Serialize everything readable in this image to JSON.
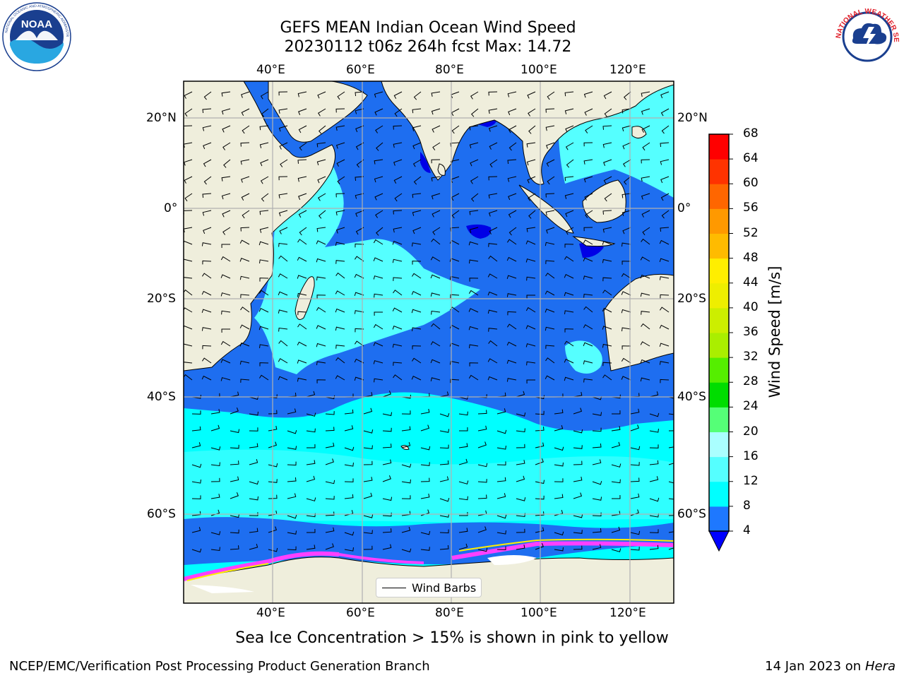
{
  "header": {
    "title_line1": "GEFS MEAN Indian Ocean Wind Speed",
    "title_line2": "20230112 t06z 264h fcst   Max: 14.72"
  },
  "logos": {
    "noaa": {
      "text": "NOAA",
      "ring_text": "NATIONAL OCEANIC AND ATMOSPHERIC ADMINISTRATION · U.S. DEPARTMENT OF COMMERCE"
    },
    "nws": {
      "ring_text": "NATIONAL WEATHER SERVICE"
    }
  },
  "map": {
    "lon_ticks": [
      "40°E",
      "60°E",
      "80°E",
      "100°E",
      "120°E"
    ],
    "lat_ticks": [
      "20°N",
      "0°",
      "20°S",
      "40°S",
      "60°S"
    ],
    "legend_label": "Wind Barbs",
    "colors": {
      "land": "#efeedc",
      "ocean_4_8": "#1e6ef0",
      "ocean_0_4": "#0000e6",
      "ocean_8_12": "#00ffff",
      "ocean_12_16": "#55ffff",
      "sea_ice": "#ff40ff",
      "grid": "#b0b0b0"
    }
  },
  "colorbar": {
    "title": "Wind Speed [m/s]",
    "levels": [
      "4",
      "8",
      "12",
      "16",
      "20",
      "24",
      "28",
      "32",
      "36",
      "40",
      "44",
      "48",
      "52",
      "56",
      "60",
      "64",
      "68"
    ],
    "colors": [
      "#0000ff",
      "#1e78ff",
      "#00ffff",
      "#55ffff",
      "#aaffff",
      "#55ff77",
      "#00dd00",
      "#55ee00",
      "#aaee00",
      "#ccee00",
      "#eeee00",
      "#ffee00",
      "#ffbb00",
      "#ff9900",
      "#ff6600",
      "#ff3300",
      "#ff0000"
    ]
  },
  "footer": {
    "note": "Sea Ice Concentration > 15% is shown in pink to yellow",
    "left": "NCEP/EMC/Verification Post Processing Product Generation Branch",
    "right_date": "14 Jan 2023 on",
    "right_machine": "Hera"
  }
}
